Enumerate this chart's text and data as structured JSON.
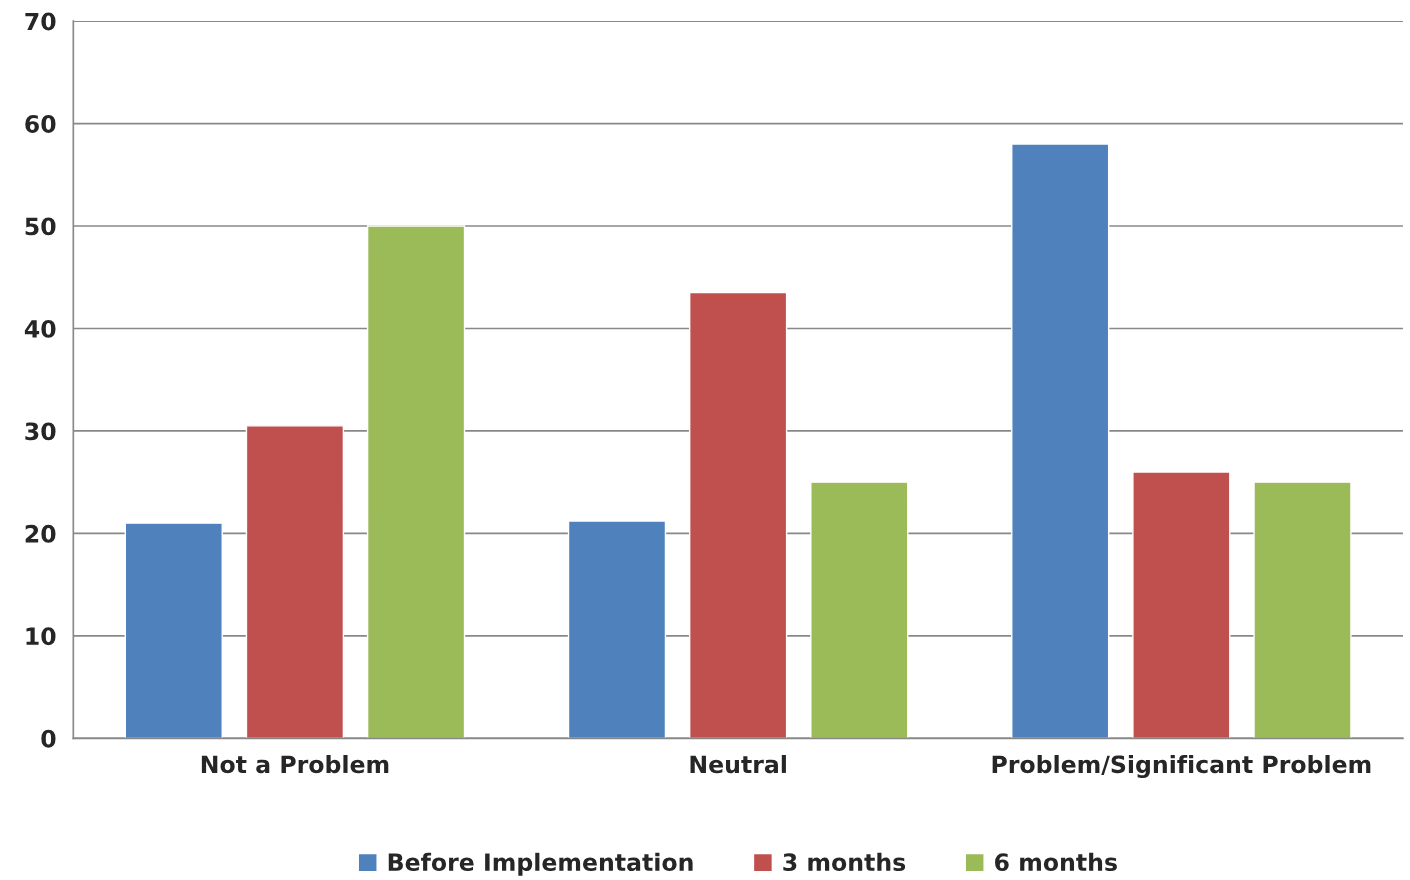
{
  "chart_data": {
    "type": "bar",
    "categories": [
      "Not a Problem",
      "Neutral",
      "Problem/Significant Problem"
    ],
    "series": [
      {
        "name": "Before Implementation",
        "color": "#4f81bd",
        "values": [
          21,
          21.2,
          58
        ]
      },
      {
        "name": "3 months",
        "color": "#c0504d",
        "values": [
          30.5,
          43.5,
          26
        ]
      },
      {
        "name": "6 months",
        "color": "#9bbb59",
        "values": [
          50,
          25,
          25
        ]
      }
    ],
    "ylim": [
      0,
      70
    ],
    "yticks": [
      0,
      10,
      20,
      30,
      40,
      50,
      60,
      70
    ],
    "grid": "y",
    "legend": "bottom"
  }
}
